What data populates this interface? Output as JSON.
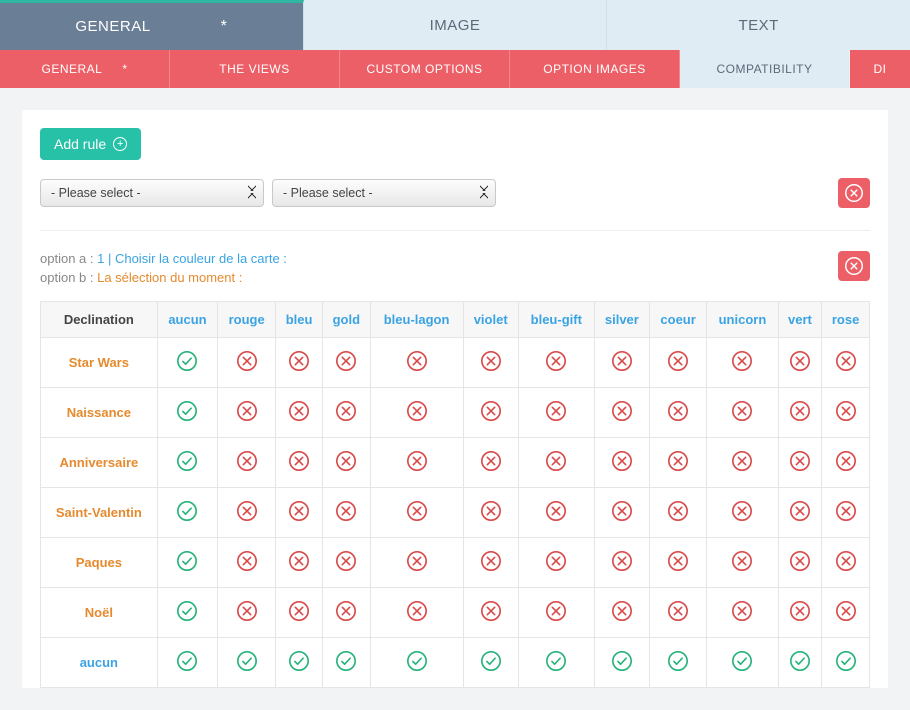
{
  "colors": {
    "topTabActiveBg": "#6a7e96",
    "topTabBg": "#e0ecf4",
    "subTabBg": "#ec5f67",
    "addBtn": "#26c1a6",
    "delBtn": "#ec5f67",
    "blue": "#3aa3e3",
    "orange": "#e68a2e",
    "green": "#27b37a",
    "red": "#d94b4b"
  },
  "topTabs": [
    {
      "label": "GENERAL",
      "active": true,
      "starred": true
    },
    {
      "label": "IMAGE",
      "active": false,
      "starred": false
    },
    {
      "label": "TEXT",
      "active": false,
      "starred": false
    }
  ],
  "subTabs": [
    {
      "label": "GENERAL",
      "active": false,
      "starred": true
    },
    {
      "label": "THE VIEWS",
      "active": false
    },
    {
      "label": "CUSTOM OPTIONS",
      "active": false
    },
    {
      "label": "OPTION IMAGES",
      "active": false
    },
    {
      "label": "COMPATIBILITY",
      "active": true
    },
    {
      "label": "DI",
      "active": false
    }
  ],
  "addRuleLabel": "Add rule",
  "selects": {
    "a": {
      "value": "- Please select -"
    },
    "b": {
      "value": "- Please select -"
    }
  },
  "optA": {
    "prefix": "option a : ",
    "num": "1",
    "sep": " | ",
    "text": "Choisir la couleur de la carte :"
  },
  "optB": {
    "prefix": "option b : ",
    "text": "La sélection du moment :"
  },
  "table": {
    "headerFirst": "Declination",
    "columns": [
      "aucun",
      "rouge",
      "bleu",
      "gold",
      "bleu-lagon",
      "violet",
      "bleu-gift",
      "silver",
      "coeur",
      "unicorn",
      "vert",
      "rose"
    ],
    "rows": [
      {
        "label": "Star Wars",
        "states": [
          true,
          false,
          false,
          false,
          false,
          false,
          false,
          false,
          false,
          false,
          false,
          false
        ]
      },
      {
        "label": "Naissance",
        "states": [
          true,
          false,
          false,
          false,
          false,
          false,
          false,
          false,
          false,
          false,
          false,
          false
        ]
      },
      {
        "label": "Anniversaire",
        "states": [
          true,
          false,
          false,
          false,
          false,
          false,
          false,
          false,
          false,
          false,
          false,
          false
        ]
      },
      {
        "label": "Saint-Valentin",
        "states": [
          true,
          false,
          false,
          false,
          false,
          false,
          false,
          false,
          false,
          false,
          false,
          false
        ]
      },
      {
        "label": "Paques",
        "states": [
          true,
          false,
          false,
          false,
          false,
          false,
          false,
          false,
          false,
          false,
          false,
          false
        ]
      },
      {
        "label": "Noël",
        "states": [
          true,
          false,
          false,
          false,
          false,
          false,
          false,
          false,
          false,
          false,
          false,
          false
        ]
      },
      {
        "label": "aucun",
        "variant": "blue",
        "states": [
          true,
          true,
          true,
          true,
          true,
          true,
          true,
          true,
          true,
          true,
          true,
          true
        ]
      }
    ]
  },
  "icons": {
    "checkStroke": "#27b37a",
    "crossStroke": "#d94b4b"
  }
}
